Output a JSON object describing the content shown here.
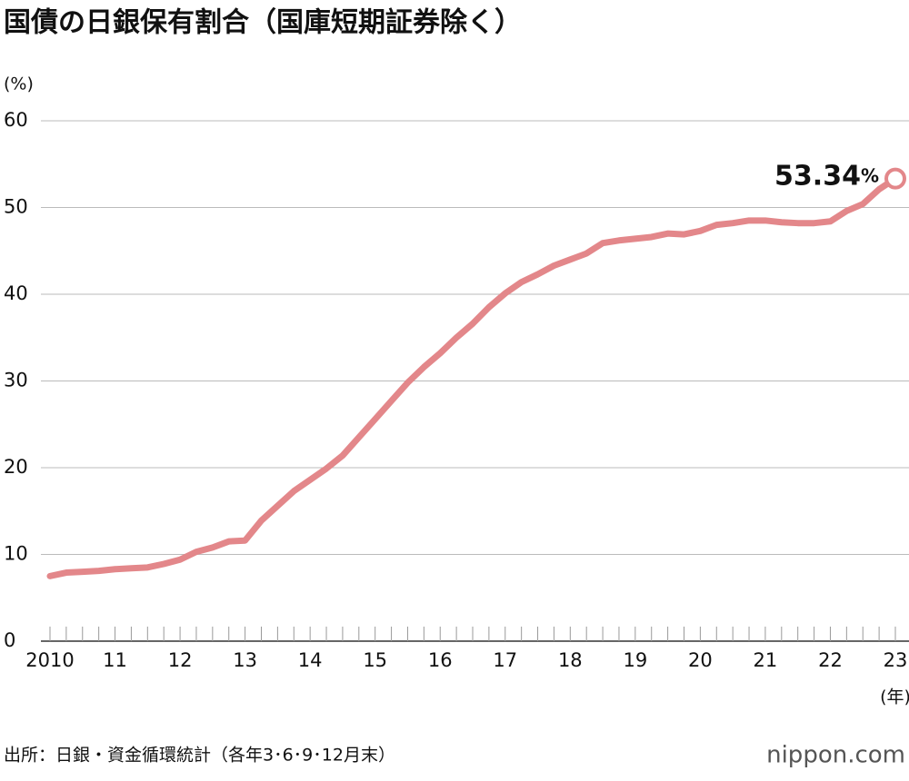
{
  "chart_data": {
    "type": "line",
    "title": "国債の日銀保有割合（国庫短期証券除く）",
    "y_unit_label": "(%)",
    "x_label": "(年)",
    "source": "出所：日銀・資金循環統計（各年3･6･9･12月末）",
    "brand": "nippon.com",
    "x": [
      2010,
      2010.25,
      2010.5,
      2010.75,
      2011,
      2011.25,
      2011.5,
      2011.75,
      2012,
      2012.25,
      2012.5,
      2012.75,
      2013,
      2013.25,
      2013.5,
      2013.75,
      2014,
      2014.25,
      2014.5,
      2014.75,
      2015,
      2015.25,
      2015.5,
      2015.75,
      2016,
      2016.25,
      2016.5,
      2016.75,
      2017,
      2017.25,
      2017.5,
      2017.75,
      2018,
      2018.25,
      2018.5,
      2018.75,
      2019,
      2019.25,
      2019.5,
      2019.75,
      2020,
      2020.25,
      2020.5,
      2020.75,
      2021,
      2021.25,
      2021.5,
      2021.75,
      2022,
      2022.25,
      2022.5,
      2022.75,
      2023
    ],
    "series": [
      {
        "color": "#e3878a",
        "values": [
          7.5,
          7.9,
          8.0,
          8.1,
          8.3,
          8.4,
          8.5,
          8.9,
          9.4,
          10.3,
          10.8,
          11.5,
          11.6,
          13.9,
          15.6,
          17.3,
          18.6,
          19.9,
          21.4,
          23.5,
          25.6,
          27.7,
          29.8,
          31.6,
          33.2,
          35.0,
          36.6,
          38.5,
          40.1,
          41.4,
          42.3,
          43.3,
          44.0,
          44.7,
          45.9,
          46.2,
          46.4,
          46.6,
          47.0,
          46.9,
          47.3,
          48.0,
          48.2,
          48.5,
          48.5,
          48.3,
          48.2,
          48.2,
          48.4,
          49.6,
          50.4,
          52.1,
          53.34
        ],
        "value_labels": [
          null,
          null,
          null,
          null,
          null,
          null,
          null,
          null,
          null,
          null,
          null,
          null,
          null,
          null,
          null,
          null,
          null,
          null,
          null,
          null,
          null,
          null,
          null,
          null,
          null,
          null,
          null,
          null,
          null,
          null,
          null,
          null,
          null,
          null,
          null,
          null,
          null,
          null,
          null,
          null,
          null,
          null,
          null,
          null,
          null,
          null,
          null,
          null,
          null,
          null,
          null,
          null,
          "53.34%"
        ]
      }
    ],
    "xlim": [
      2010,
      2023
    ],
    "xticks": [
      2010,
      {
        "value": 2011,
        "label": "11"
      },
      {
        "value": 2012,
        "label": "12"
      },
      {
        "value": 2013,
        "label": "13"
      },
      {
        "value": 2014,
        "label": "14"
      },
      {
        "value": 2015,
        "label": "15"
      },
      {
        "value": 2016,
        "label": "16"
      },
      {
        "value": 2017,
        "label": "17"
      },
      {
        "value": 2018,
        "label": "18"
      },
      {
        "value": 2019,
        "label": "19"
      },
      {
        "value": 2020,
        "label": "20"
      },
      {
        "value": 2021,
        "label": "21"
      },
      {
        "value": 2022,
        "label": "22"
      },
      {
        "value": 2023,
        "label": "23"
      }
    ],
    "ylim": [
      0,
      60
    ],
    "yticks": [
      0,
      10,
      20,
      30,
      40,
      50,
      60
    ],
    "grid": true
  }
}
